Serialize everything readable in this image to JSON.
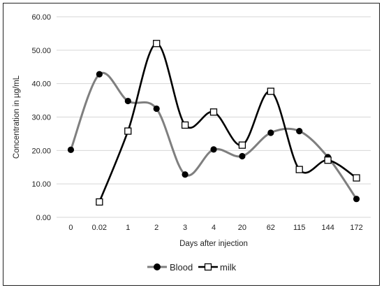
{
  "chart_data": {
    "type": "line",
    "categories": [
      "0",
      "0.02",
      "1",
      "2",
      "3",
      "4",
      "20",
      "62",
      "115",
      "144",
      "172"
    ],
    "series": [
      {
        "name": "Blood",
        "color": "#7f7f7f",
        "marker": "filled-circle",
        "marker_color": "#000000",
        "values": [
          20.2,
          42.8,
          34.8,
          32.5,
          12.8,
          20.3,
          18.3,
          25.3,
          25.8,
          18.0,
          5.5
        ]
      },
      {
        "name": "milk",
        "color": "#000000",
        "marker": "open-square",
        "marker_color": "#000000",
        "values": [
          null,
          4.6,
          25.8,
          52.0,
          27.6,
          31.5,
          21.6,
          37.7,
          14.3,
          17.1,
          11.8
        ]
      }
    ],
    "title": "",
    "xlabel": "Days after injection",
    "ylabel": "Concentration in µg/mL",
    "ylim": [
      0,
      60
    ],
    "yticks": [
      "0.00",
      "10.00",
      "20.00",
      "30.00",
      "40.00",
      "50.00",
      "60.00"
    ],
    "grid": "horizontal",
    "legend_position": "bottom"
  }
}
